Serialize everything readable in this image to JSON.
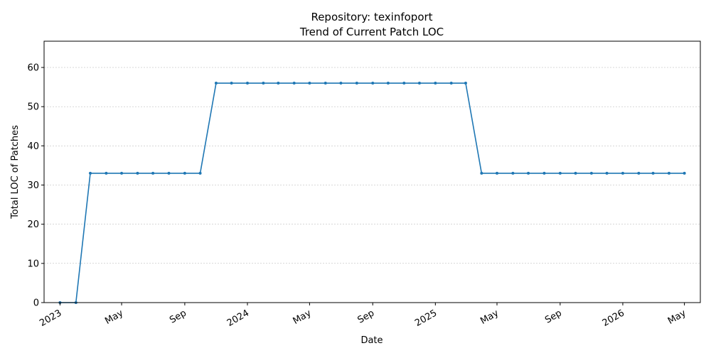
{
  "chart_data": {
    "type": "line",
    "title": "Repository: texinfoport",
    "subtitle": "Trend of Current Patch LOC",
    "xlabel": "Date",
    "ylabel": "Total LOC of Patches",
    "ylim": [
      0,
      66.7
    ],
    "yticks": [
      0,
      10,
      20,
      30,
      40,
      50,
      60
    ],
    "xlim": [
      "2022-12-01",
      "2026-06-01"
    ],
    "xticks": [
      {
        "date": "2023-01-01",
        "label": "2023"
      },
      {
        "date": "2023-05-01",
        "label": "May"
      },
      {
        "date": "2023-09-01",
        "label": "Sep"
      },
      {
        "date": "2024-01-01",
        "label": "2024"
      },
      {
        "date": "2024-05-01",
        "label": "May"
      },
      {
        "date": "2024-09-01",
        "label": "Sep"
      },
      {
        "date": "2025-01-01",
        "label": "2025"
      },
      {
        "date": "2025-05-01",
        "label": "May"
      },
      {
        "date": "2025-09-01",
        "label": "Sep"
      },
      {
        "date": "2026-01-01",
        "label": "2026"
      },
      {
        "date": "2026-05-01",
        "label": "May"
      }
    ],
    "grid": "horizontal dashed",
    "color": "#1f77b4",
    "series": [
      {
        "x": [
          "2023-01-01",
          "2023-02-01",
          "2023-03-01",
          "2023-04-01",
          "2023-05-01",
          "2023-06-01",
          "2023-07-01",
          "2023-08-01",
          "2023-09-01",
          "2023-10-01",
          "2023-11-01",
          "2023-12-01",
          "2024-01-01",
          "2024-02-01",
          "2024-03-01",
          "2024-04-01",
          "2024-05-01",
          "2024-06-01",
          "2024-07-01",
          "2024-08-01",
          "2024-09-01",
          "2024-10-01",
          "2024-11-01",
          "2024-12-01",
          "2025-01-01",
          "2025-02-01",
          "2025-03-01",
          "2025-04-01",
          "2025-05-01",
          "2025-06-01",
          "2025-07-01",
          "2025-08-01",
          "2025-09-01",
          "2025-10-01",
          "2025-11-01",
          "2025-12-01",
          "2026-01-01",
          "2026-02-01",
          "2026-03-01",
          "2026-04-01",
          "2026-05-01"
        ],
        "values": [
          0,
          0,
          33,
          33,
          33,
          33,
          33,
          33,
          33,
          33,
          56,
          56,
          56,
          56,
          56,
          56,
          56,
          56,
          56,
          56,
          56,
          56,
          56,
          56,
          56,
          56,
          56,
          33,
          33,
          33,
          33,
          33,
          33,
          33,
          33,
          33,
          33,
          33,
          33,
          33,
          33
        ]
      }
    ]
  }
}
